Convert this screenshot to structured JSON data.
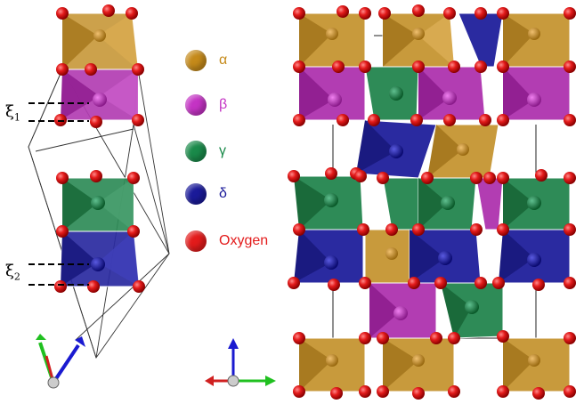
{
  "legend": {
    "items": [
      {
        "symbol": "α",
        "color": "#c58a1a",
        "text_color": "#c58a1a"
      },
      {
        "symbol": "β",
        "color": "#c433c4",
        "text_color": "#c433c4"
      },
      {
        "symbol": "γ",
        "color": "#1a8a4a",
        "text_color": "#1a8a4a"
      },
      {
        "symbol": "δ",
        "color": "#1a1a99",
        "text_color": "#1a1a99"
      },
      {
        "symbol": "Oxygen",
        "color": "#e31b1b",
        "text_color": "#e31b1b"
      }
    ]
  },
  "labels": {
    "xi1": {
      "base": "ξ",
      "sub": "1"
    },
    "xi2": {
      "base": "ξ",
      "sub": "2"
    }
  },
  "colors": {
    "alpha": "#c89a3c",
    "beta": "#b23db2",
    "gamma": "#2e8b57",
    "delta": "#2a2aa0",
    "oxygen": "#e31b1b"
  }
}
